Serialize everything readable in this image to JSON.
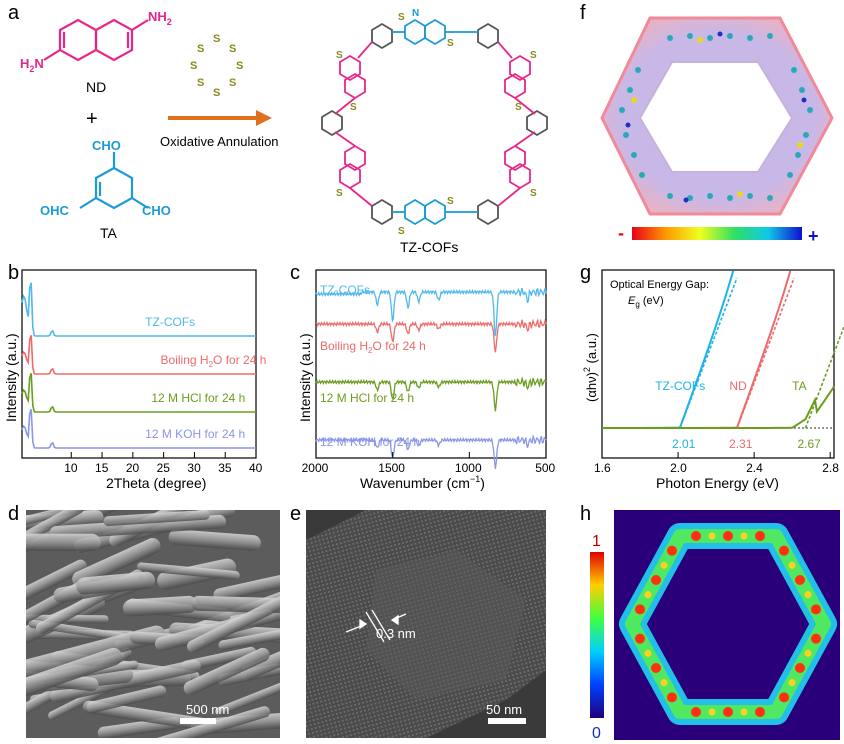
{
  "panels": {
    "a": "a",
    "b": "b",
    "c": "c",
    "d": "d",
    "e": "e",
    "f": "f",
    "g": "g",
    "h": "h"
  },
  "scheme": {
    "nd_label": "ND",
    "ta_label": "TA",
    "plus": "+",
    "arrow_label": "Oxidative Annulation",
    "product_label": "TZ-COFs",
    "nh2": "NH",
    "nh2_sub": "2",
    "h2n": "H",
    "h2n_sub": "2",
    "h2n_n": "N",
    "cho": "CHO",
    "ohc": "OHC",
    "s": "S",
    "n": "N"
  },
  "panel_b": {
    "xlabel": "2Theta (degree)",
    "ylabel": "Intensity (a.u.)",
    "xticks": [
      "10",
      "15",
      "20",
      "25",
      "30",
      "35",
      "40"
    ],
    "traces": [
      {
        "label": "TZ-COFs",
        "color": "#4fb8ec"
      },
      {
        "label": "Boiling H",
        "label_sub": "2",
        "label_tail": "O for 24 h",
        "color": "#ee6a6a"
      },
      {
        "label": "12 M HCl for 24 h",
        "color": "#6a9d1e"
      },
      {
        "label": "12 M KOH for 24 h",
        "color": "#8a96e6"
      }
    ]
  },
  "panel_c": {
    "xlabel": "Wavenumber (cm",
    "xlabel_sup": "−1",
    "xlabel_tail": ")",
    "ylabel": "Intensity (a.u.)",
    "xticks": [
      "2000",
      "1500",
      "1000",
      "500"
    ],
    "traces": [
      {
        "label": "TZ-COFs",
        "color": "#4fb8ec"
      },
      {
        "label": "Boiling H",
        "label_sub": "2",
        "label_tail": "O for 24 h",
        "color": "#ee6a6a"
      },
      {
        "label": "12 M HCl for 24 h",
        "color": "#6a9d1e"
      },
      {
        "label": "12 M KOH for 24 h",
        "color": "#8a96e6"
      }
    ]
  },
  "panel_g": {
    "title": "Optical Energy Gap:",
    "title2_e": "E",
    "title2_sub": "g",
    "title2_tail": " (eV)",
    "xlabel": "Photon Energy (eV)",
    "ylabel_pre": "(αhν)",
    "ylabel_sup": "2",
    "ylabel_tail": " (a.u.)",
    "xticks": [
      "1.6",
      "2.0",
      "2.4",
      "2.8"
    ],
    "series": [
      {
        "name": "TZ-COFs",
        "gap": "2.01",
        "color": "#1bb3e8"
      },
      {
        "name": "ND",
        "gap": "2.31",
        "color": "#ee6a6a"
      },
      {
        "name": "TA",
        "gap": "2.67",
        "color": "#6a9d1e"
      }
    ]
  },
  "panel_d": {
    "scale": "500 nm"
  },
  "panel_e": {
    "scale": "50 nm",
    "spacing": "0.3 nm"
  },
  "panel_f": {
    "minus": "-",
    "plus": "+"
  },
  "panel_h": {
    "max": "1",
    "min": "0"
  },
  "colors": {
    "pink": "#e8268a",
    "teal": "#1a9ad6",
    "olive": "#8a8a1a",
    "orange": "#e0701e",
    "cyanpanel": "#1bb3e8"
  }
}
